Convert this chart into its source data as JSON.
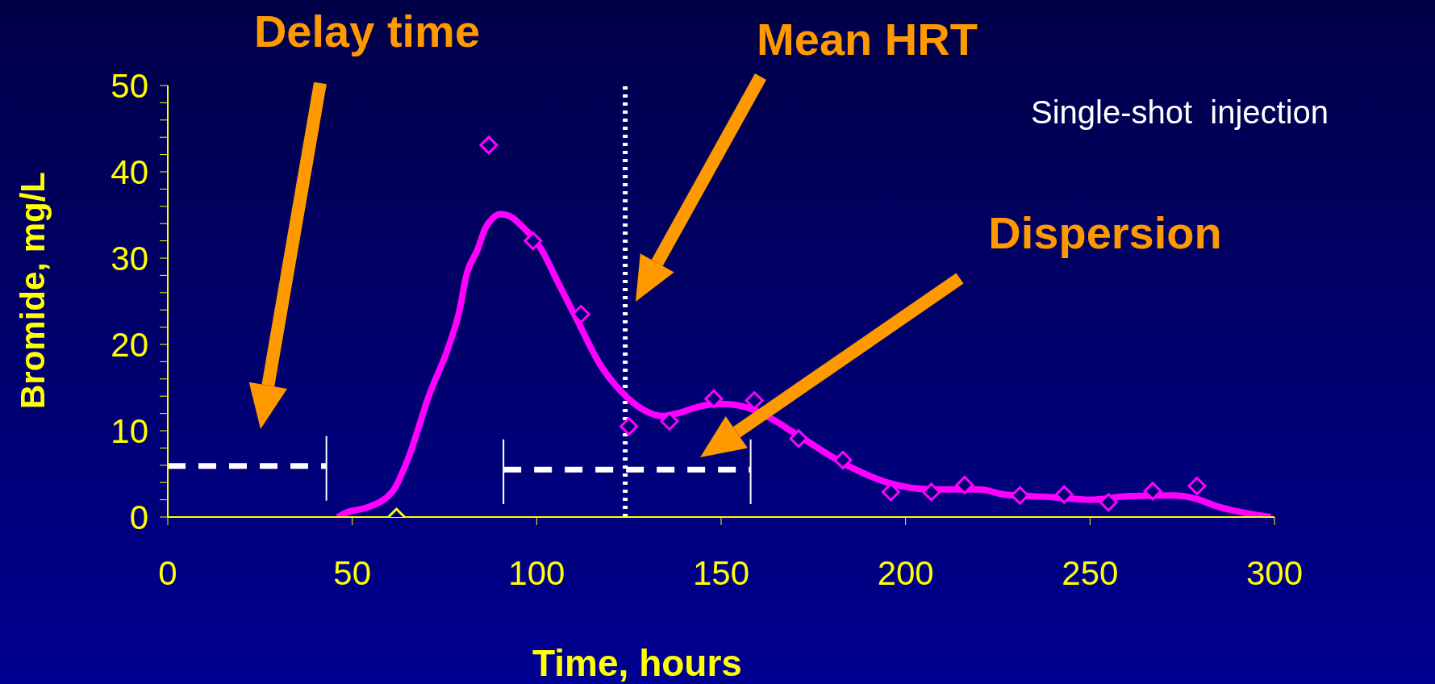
{
  "chart_data": {
    "type": "line",
    "xlabel": "Time, hours",
    "ylabel": "Bromide, mg/L",
    "xlim": [
      0,
      300
    ],
    "xticks": [
      0,
      50,
      100,
      150,
      200,
      250,
      300
    ],
    "ylim": [
      0,
      50
    ],
    "yticks": [
      0,
      {
        "value": 2,
        "label": null
      },
      {
        "value": 4,
        "label": null
      },
      {
        "value": 6,
        "label": null
      },
      {
        "value": 8,
        "label": null
      },
      10,
      {
        "value": 12,
        "label": null
      },
      {
        "value": 14,
        "label": null
      },
      {
        "value": 16,
        "label": null
      },
      {
        "value": 18,
        "label": null
      },
      20,
      {
        "value": 22,
        "label": null
      },
      {
        "value": 24,
        "label": null
      },
      {
        "value": 26,
        "label": null
      },
      {
        "value": 28,
        "label": null
      },
      30,
      {
        "value": 32,
        "label": null
      },
      {
        "value": 34,
        "label": null
      },
      {
        "value": 36,
        "label": null
      },
      {
        "value": 38,
        "label": null
      },
      40,
      {
        "value": 42,
        "label": null
      },
      {
        "value": 44,
        "label": null
      },
      {
        "value": 46,
        "label": null
      },
      {
        "value": 48,
        "label": null
      },
      50
    ],
    "grid": false,
    "series": [
      {
        "type": "line",
        "color": "#ff00ff",
        "marker": "none",
        "line_style": "solid",
        "x": [
          46,
          49,
          54,
          61,
          65,
          71,
          76,
          79,
          81,
          84,
          86,
          88,
          90,
          92.5,
          96,
          101,
          106,
          111,
          117,
          123,
          129,
          134,
          138,
          144,
          150,
          157,
          164,
          170,
          185,
          195,
          207,
          220,
          227,
          240,
          250,
          260,
          272,
          279,
          284,
          293,
          299
        ],
        "values": [
          0,
          0.6,
          1.1,
          3.0,
          6.6,
          14.3,
          19.6,
          23.8,
          28.1,
          31.0,
          33.4,
          34.6,
          35.1,
          34.9,
          33.7,
          31.2,
          27,
          22.8,
          17.8,
          14.5,
          12.4,
          11.7,
          12,
          12.8,
          13.1,
          12.7,
          11.3,
          9.7,
          5.8,
          4.0,
          3.2,
          3.2,
          2.6,
          2.3,
          2.0,
          2.4,
          2.5,
          2.1,
          1.3,
          0.4,
          0
        ]
      },
      {
        "type": "scatter",
        "color": "#ff00ff",
        "marker": "diamond",
        "x": [
          87,
          99,
          112,
          125,
          136,
          148,
          159,
          171,
          183,
          196,
          207,
          216,
          231,
          243,
          255,
          267,
          279
        ],
        "values": [
          43.1,
          32.0,
          23.5,
          10.5,
          11.1,
          13.7,
          13.5,
          9.1,
          6.6,
          2.9,
          2.9,
          3.7,
          2.5,
          2.6,
          1.7,
          3.0,
          3.6
        ]
      },
      {
        "type": "scatter",
        "color": "#ffff00",
        "marker": "diamond",
        "x": [
          62
        ],
        "values": [
          0
        ]
      },
      {
        "type": "line",
        "color": "#ffffff",
        "marker": "none",
        "line_style": "dashed",
        "x": [
          0,
          43
        ],
        "values": [
          5.9,
          5.9
        ]
      },
      {
        "type": "line",
        "color": "#ffffff",
        "marker": "none",
        "line_style": "dashed",
        "x": [
          91,
          158
        ],
        "values": [
          5.5,
          5.5
        ]
      }
    ],
    "ref_lines": [
      {
        "axis": "x",
        "value": 124,
        "color": "#ffffff",
        "line_style": "dotted"
      }
    ],
    "annotations": [
      "Delay time",
      "Mean HRT",
      "Dispersion",
      "Single-shot  injection"
    ]
  }
}
